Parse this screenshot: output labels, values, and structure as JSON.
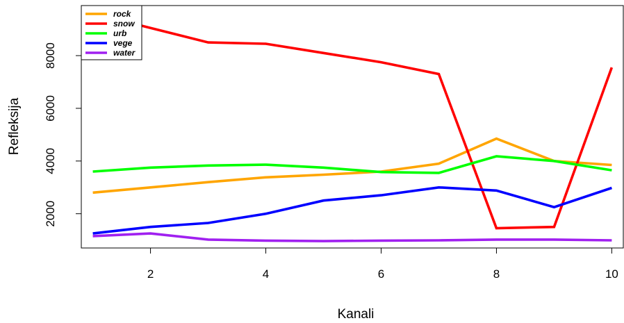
{
  "chart_data": {
    "type": "line",
    "title": "",
    "xlabel": "Kanali",
    "ylabel": "Refleksija",
    "xlim": [
      0.8,
      10.2
    ],
    "ylim": [
      700,
      9900
    ],
    "x_ticks": [
      2,
      4,
      6,
      8,
      10
    ],
    "y_ticks": [
      2000,
      4000,
      6000,
      8000
    ],
    "x": [
      1,
      2,
      3,
      4,
      5,
      6,
      7,
      8,
      9,
      10
    ],
    "legend_position": "top-left",
    "grid": false,
    "series": [
      {
        "name": "rock",
        "color": "#FFA500",
        "values": [
          2800,
          3000,
          3200,
          3380,
          3480,
          3600,
          3900,
          4850,
          4000,
          3850
        ]
      },
      {
        "name": "snow",
        "color": "#FF0000",
        "values": [
          9600,
          9050,
          8500,
          8450,
          8100,
          7750,
          7300,
          1450,
          1500,
          7550
        ]
      },
      {
        "name": "urb",
        "color": "#00FF00",
        "values": [
          3600,
          3750,
          3830,
          3860,
          3750,
          3580,
          3550,
          4180,
          4000,
          3650
        ]
      },
      {
        "name": "vege",
        "color": "#0000FF",
        "values": [
          1250,
          1500,
          1650,
          2000,
          2500,
          2700,
          3000,
          2880,
          2250,
          2980
        ]
      },
      {
        "name": "water",
        "color": "#A020F0",
        "values": [
          1150,
          1250,
          1020,
          980,
          960,
          980,
          990,
          1020,
          1020,
          990
        ]
      }
    ]
  }
}
